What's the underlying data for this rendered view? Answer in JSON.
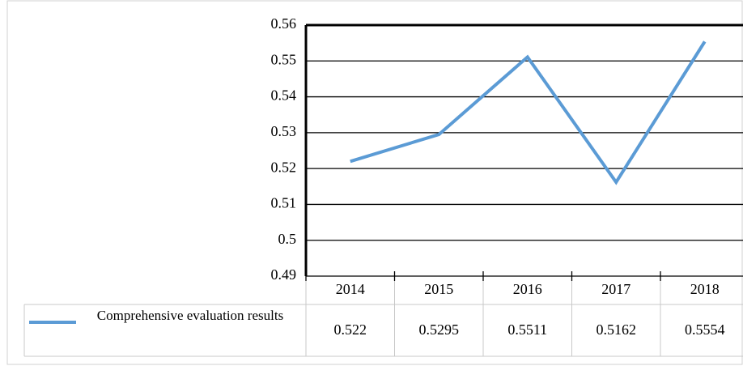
{
  "chart_data": {
    "type": "line",
    "categories": [
      "2014",
      "2015",
      "2016",
      "2017",
      "2018"
    ],
    "series": [
      {
        "name": "Comprehensive evaluation results",
        "color": "#5b9bd5",
        "values": [
          0.522,
          0.5295,
          0.5511,
          0.5162,
          0.5554
        ]
      }
    ],
    "ylim": [
      0.49,
      0.56
    ],
    "yticks": [
      0.49,
      0.5,
      0.51,
      0.52,
      0.53,
      0.54,
      0.55,
      0.56
    ],
    "grid": true
  }
}
